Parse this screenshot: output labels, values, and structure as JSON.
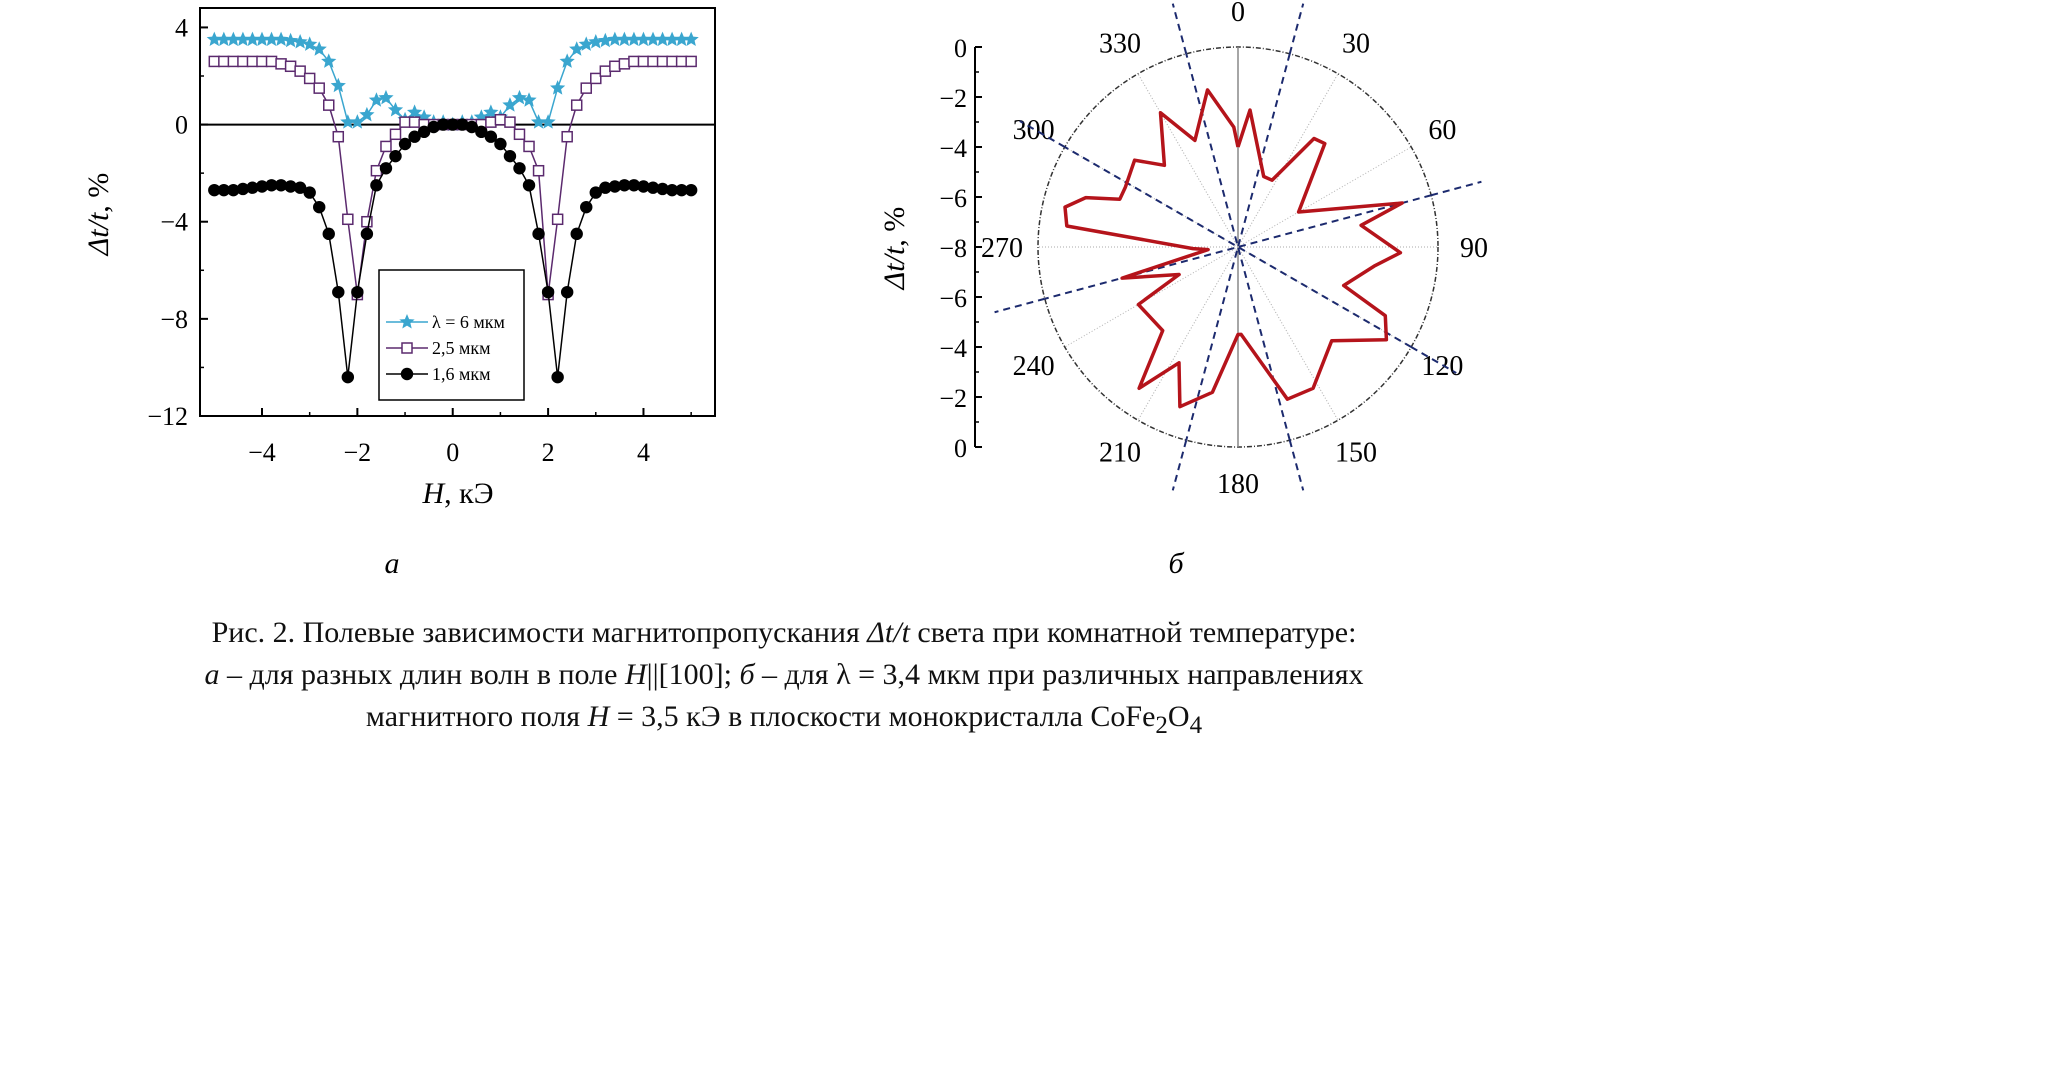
{
  "chart_data": [
    {
      "type": "line",
      "xlabel_var": "H",
      "xlabel_unit": ", кЭ",
      "ylabel_var": "Δt/t",
      "ylabel_unit": ", %",
      "xlim": [
        -5.3,
        5.5
      ],
      "ylim": [
        -12,
        4.8
      ],
      "xticks": [
        -4,
        -2,
        0,
        2,
        4
      ],
      "yticks": [
        4,
        0,
        -4,
        -8,
        -12
      ],
      "xtick_labels": [
        "−4",
        "−2",
        "0",
        "2",
        "4"
      ],
      "ytick_labels": [
        "4",
        "0",
        "−4",
        "−8",
        "−12"
      ],
      "zero_line": true,
      "legend_position": "bottom-center",
      "series": [
        {
          "name": "λ = 6 мкм",
          "marker": "star",
          "color": "#3aa6cf",
          "x": [
            -5.0,
            -4.8,
            -4.6,
            -4.4,
            -4.2,
            -4.0,
            -3.8,
            -3.6,
            -3.4,
            -3.2,
            -3.0,
            -2.8,
            -2.6,
            -2.4,
            -2.2,
            -2.0,
            -1.8,
            -1.6,
            -1.4,
            -1.2,
            -1.0,
            -0.8,
            -0.6,
            -0.4,
            -0.2,
            0.0,
            0.2,
            0.4,
            0.6,
            0.8,
            1.0,
            1.2,
            1.4,
            1.6,
            1.8,
            2.0,
            2.2,
            2.4,
            2.6,
            2.8,
            3.0,
            3.2,
            3.4,
            3.6,
            3.8,
            4.0,
            4.2,
            4.4,
            4.6,
            4.8,
            5.0
          ],
          "y": [
            3.5,
            3.5,
            3.5,
            3.5,
            3.5,
            3.5,
            3.5,
            3.5,
            3.45,
            3.4,
            3.3,
            3.1,
            2.6,
            1.6,
            0.1,
            0.1,
            0.4,
            1.0,
            1.1,
            0.6,
            0.2,
            0.5,
            0.3,
            0.1,
            0.1,
            0.0,
            0.1,
            0.1,
            0.3,
            0.5,
            0.3,
            0.8,
            1.1,
            1.0,
            0.1,
            0.1,
            1.5,
            2.6,
            3.1,
            3.3,
            3.4,
            3.45,
            3.5,
            3.5,
            3.5,
            3.5,
            3.5,
            3.5,
            3.5,
            3.5,
            3.5
          ]
        },
        {
          "name": "2,5 мкм",
          "marker": "square",
          "color": "#5b2a6e",
          "x": [
            -5.0,
            -4.8,
            -4.6,
            -4.4,
            -4.2,
            -4.0,
            -3.8,
            -3.6,
            -3.4,
            -3.2,
            -3.0,
            -2.8,
            -2.6,
            -2.4,
            -2.2,
            -2.0,
            -1.8,
            -1.6,
            -1.4,
            -1.2,
            -1.0,
            -0.8,
            -0.6,
            -0.4,
            -0.2,
            0.0,
            0.2,
            0.4,
            0.6,
            0.8,
            1.0,
            1.2,
            1.4,
            1.6,
            1.8,
            2.0,
            2.2,
            2.4,
            2.6,
            2.8,
            3.0,
            3.2,
            3.4,
            3.6,
            3.8,
            4.0,
            4.2,
            4.4,
            4.6,
            4.8,
            5.0
          ],
          "y": [
            2.6,
            2.6,
            2.6,
            2.6,
            2.6,
            2.6,
            2.6,
            2.5,
            2.4,
            2.2,
            1.9,
            1.5,
            0.8,
            -0.5,
            -3.9,
            -7.0,
            -4.0,
            -1.9,
            -0.9,
            -0.4,
            0.1,
            0.1,
            0.0,
            0.0,
            0.0,
            0.0,
            0.0,
            0.0,
            0.0,
            0.1,
            0.2,
            0.1,
            -0.4,
            -0.9,
            -1.9,
            -7.0,
            -3.9,
            -0.5,
            0.8,
            1.5,
            1.9,
            2.2,
            2.4,
            2.5,
            2.6,
            2.6,
            2.6,
            2.6,
            2.6,
            2.6,
            2.6
          ]
        },
        {
          "name": "1,6 мкм",
          "marker": "circle",
          "color": "#000000",
          "x": [
            -5.0,
            -4.8,
            -4.6,
            -4.4,
            -4.2,
            -4.0,
            -3.8,
            -3.6,
            -3.4,
            -3.2,
            -3.0,
            -2.8,
            -2.6,
            -2.4,
            -2.2,
            -2.0,
            -1.8,
            -1.6,
            -1.4,
            -1.2,
            -1.0,
            -0.8,
            -0.6,
            -0.4,
            -0.2,
            0.0,
            0.2,
            0.4,
            0.6,
            0.8,
            1.0,
            1.2,
            1.4,
            1.6,
            1.8,
            2.0,
            2.2,
            2.4,
            2.6,
            2.8,
            3.0,
            3.2,
            3.4,
            3.6,
            3.8,
            4.0,
            4.2,
            4.4,
            4.6,
            4.8,
            5.0
          ],
          "y": [
            -2.7,
            -2.7,
            -2.7,
            -2.65,
            -2.6,
            -2.55,
            -2.5,
            -2.5,
            -2.55,
            -2.6,
            -2.8,
            -3.4,
            -4.5,
            -6.9,
            -10.4,
            -6.9,
            -4.5,
            -2.5,
            -1.8,
            -1.3,
            -0.8,
            -0.5,
            -0.3,
            -0.1,
            0.0,
            0.0,
            0.0,
            -0.1,
            -0.3,
            -0.5,
            -0.8,
            -1.3,
            -1.8,
            -2.5,
            -4.5,
            -6.9,
            -10.4,
            -6.9,
            -4.5,
            -3.4,
            -2.8,
            -2.6,
            -2.55,
            -2.5,
            -2.5,
            -2.55,
            -2.6,
            -2.65,
            -2.7,
            -2.7,
            -2.7
          ]
        }
      ]
    },
    {
      "type": "polar",
      "ylabel_var": "Δt/t",
      "ylabel_unit": ", %",
      "angle_labels": [
        "0",
        "30",
        "60",
        "90",
        "120",
        "150",
        "180",
        "210",
        "240",
        "270",
        "300",
        "330"
      ],
      "radial_labels_top": [
        "0",
        "−2",
        "−4",
        "−6",
        "−8"
      ],
      "radial_labels_bottom": [
        "−6",
        "−4",
        "−2",
        "0"
      ],
      "r_range": [
        -8,
        0
      ],
      "series": [
        {
          "color": "#b5141b",
          "theta": [
            0,
            5,
            20,
            27,
            35,
            40,
            60,
            75,
            80,
            92,
            98,
            110,
            115,
            122,
            135,
            152,
            162,
            178,
            180,
            190,
            200,
            207,
            215,
            222,
            240,
            245,
            255,
            265,
            268,
            277,
            283,
            288,
            292,
            298,
            310,
            318,
            330,
            338,
            349,
            358,
            360
          ],
          "r": [
            -4,
            -2.5,
            -5,
            -5,
            -2.7,
            -2.6,
            -5.2,
            -1.2,
            -3,
            -1.5,
            -2.5,
            -3.5,
            -1.5,
            -1,
            -2.7,
            -1.6,
            -1.6,
            -4.5,
            -4.5,
            -2.1,
            -1.2,
            -2.8,
            -1.1,
            -3.5,
            -3.4,
            -5.4,
            -3.2,
            -6.8,
            -6.2,
            -1.1,
            -0.9,
            -1.6,
            -2.9,
            -2.9,
            -2.6,
            -3.6,
            -1.8,
            -3.4,
            -1.6,
            -3.2,
            -4
          ]
        }
      ],
      "dashed_line_angles": [
        15,
        75,
        120,
        165
      ]
    }
  ],
  "panel_labels": {
    "a": "а",
    "b": "б"
  },
  "caption": {
    "prefix": "Рис. 2. Полевые зависимости магнитопропускания ",
    "dt_symbol": "Δt/t",
    "line1_rest": " света при комнатной температуре:",
    "item_a": "а",
    "line2_mid": " – для разных длин волн в поле ",
    "H_symbol": "H",
    "line2_hkl": "||[100]; ",
    "item_b": "б",
    "line2_end": " – для λ = 3,4 мкм при различных направлениях",
    "line3_start": "магнитного поля ",
    "line3_value": " = 3,5 кЭ в плоскости монокристалла CoFe",
    "sub_2": "2",
    "o_symbol": "O",
    "sub_4": "4"
  }
}
